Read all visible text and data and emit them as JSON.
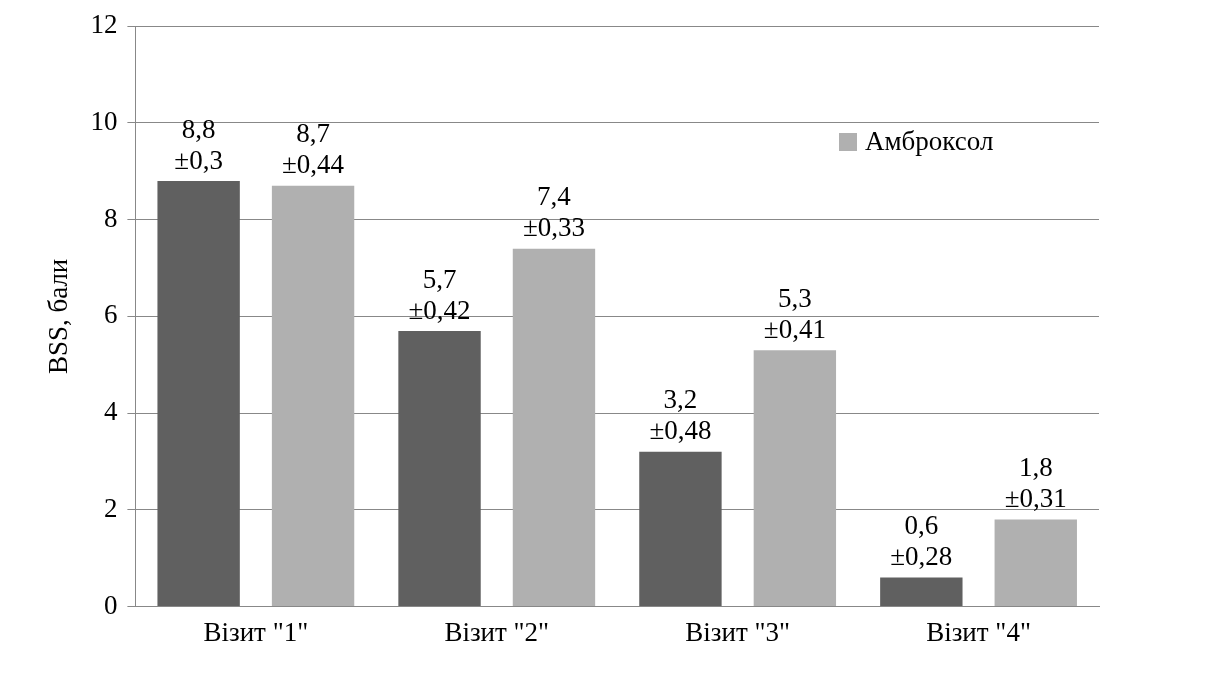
{
  "chart_data": {
    "type": "bar",
    "ylabel": "BSS, бали",
    "categories": [
      "Візит \"1\"",
      "Візит \"2\"",
      "Візит \"3\"",
      "Візит \"4\""
    ],
    "series": [
      {
        "color": "#606060",
        "values": [
          8.8,
          5.7,
          3.2,
          0.6
        ],
        "value_labels": [
          "8,8\n±0,3",
          "5,7\n±0,42",
          "3,2\n±0,48",
          "0,6\n±0,28"
        ]
      },
      {
        "name": "Амброксол",
        "color": "#b0b0b0",
        "values": [
          8.7,
          7.4,
          5.3,
          1.8
        ],
        "value_labels": [
          "8,7\n±0,44",
          "7,4\n±0,33",
          "5,3\n±0,41",
          "1,8\n±0,31"
        ]
      }
    ],
    "ylim": [
      0,
      12
    ],
    "yticks": [
      0,
      2,
      4,
      6,
      8,
      10,
      12
    ],
    "grid": "y",
    "legend": "top right"
  }
}
